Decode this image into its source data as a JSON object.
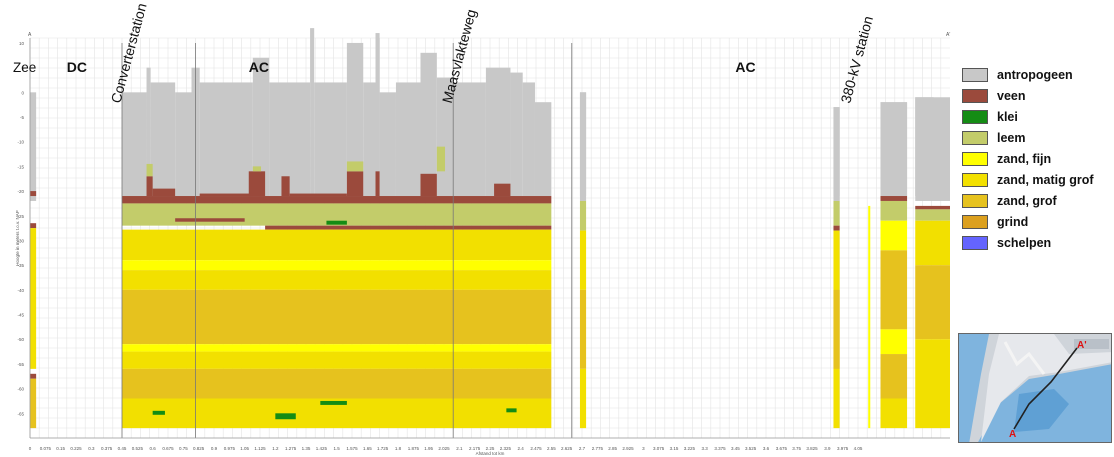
{
  "chart_data": {
    "type": "stacked-profile",
    "title": "",
    "xlabel": "Afstand tot km",
    "ylabel": "Hoogte in meters t.o.v. NAP",
    "xlim": [
      0,
      4.5
    ],
    "ylim": [
      -70,
      11
    ],
    "grid": true,
    "legend_placement": "right",
    "top_label": "A",
    "top_right_label": "A'",
    "y_ticks": [
      10,
      5,
      0,
      -5,
      -10,
      -15,
      -20,
      -25,
      -30,
      -35,
      -40,
      -45,
      -50,
      -55,
      -60,
      -65
    ],
    "x_ticks": [
      "0",
      "0.075",
      "0.15",
      "0.225",
      "0.3",
      "0.375",
      "0.45",
      "0.525",
      "0.6",
      "0.675",
      "0.75",
      "0.825",
      "0.9",
      "0.975",
      "1.05",
      "1.125",
      "1.2",
      "1.275",
      "1.35",
      "1.425",
      "1.5",
      "1.575",
      "1.65",
      "1.725",
      "1.8",
      "1.875",
      "1.95",
      "2.025",
      "2.1",
      "2.175",
      "2.25",
      "2.325",
      "2.4",
      "2.475",
      "2.55",
      "2.625",
      "2.7",
      "2.775",
      "2.85",
      "2.925",
      "3",
      "3.075",
      "3.15",
      "3.225",
      "3.3",
      "3.375",
      "3.45",
      "3.525",
      "3.6",
      "3.675",
      "3.75",
      "3.825",
      "3.9",
      "3.975",
      "4.05"
    ],
    "annotations": [
      {
        "text": "Zee",
        "x": 0.0
      },
      {
        "text": "DC",
        "x": 0.18
      },
      {
        "text": "Converterstation",
        "x": 0.48,
        "rotated": true
      },
      {
        "text": "AC",
        "x": 1.07
      },
      {
        "text": "Maasvlakteweg",
        "x": 2.1,
        "rotated": true
      },
      {
        "text": "AC",
        "x": 3.45
      },
      {
        "text": "380-kV station",
        "x": 4.05,
        "rotated": true
      }
    ],
    "vertical_lines": [
      0.45,
      0.81,
      2.07,
      2.65
    ],
    "materials": [
      {
        "name": "antropogeen",
        "color": "#c8c8c8"
      },
      {
        "name": "veen",
        "color": "#9b4a3c"
      },
      {
        "name": "klei",
        "color": "#148c14"
      },
      {
        "name": "leem",
        "color": "#c3cc6a"
      },
      {
        "name": "zand, fijn",
        "color": "#ffff00"
      },
      {
        "name": "zand, matig grof",
        "color": "#f2e000"
      },
      {
        "name": "zand, grof",
        "color": "#e6c21e"
      },
      {
        "name": "grind",
        "color": "#dca01e"
      },
      {
        "name": "schelpen",
        "color": "#6464ff"
      }
    ],
    "surface_profile": [
      {
        "x0": 0.45,
        "x1": 0.57,
        "top": 0
      },
      {
        "x0": 0.57,
        "x1": 0.59,
        "top": 5
      },
      {
        "x0": 0.59,
        "x1": 0.71,
        "top": 2
      },
      {
        "x0": 0.71,
        "x1": 0.79,
        "top": 0
      },
      {
        "x0": 0.79,
        "x1": 0.83,
        "top": 5
      },
      {
        "x0": 0.83,
        "x1": 1.09,
        "top": 2
      },
      {
        "x0": 1.09,
        "x1": 1.17,
        "top": 7
      },
      {
        "x0": 1.17,
        "x1": 1.37,
        "top": 2
      },
      {
        "x0": 1.37,
        "x1": 1.39,
        "top": 13
      },
      {
        "x0": 1.39,
        "x1": 1.55,
        "top": 2
      },
      {
        "x0": 1.55,
        "x1": 1.63,
        "top": 10
      },
      {
        "x0": 1.63,
        "x1": 1.69,
        "top": 2
      },
      {
        "x0": 1.69,
        "x1": 1.71,
        "top": 12
      },
      {
        "x0": 1.71,
        "x1": 1.79,
        "top": 0
      },
      {
        "x0": 1.79,
        "x1": 1.91,
        "top": 2
      },
      {
        "x0": 1.91,
        "x1": 1.99,
        "top": 8
      },
      {
        "x0": 1.99,
        "x1": 2.07,
        "top": 3
      },
      {
        "x0": 2.07,
        "x1": 2.23,
        "top": 2
      },
      {
        "x0": 2.23,
        "x1": 2.35,
        "top": 5
      },
      {
        "x0": 2.35,
        "x1": 2.41,
        "top": 4
      },
      {
        "x0": 2.41,
        "x1": 2.47,
        "top": 2
      },
      {
        "x0": 2.47,
        "x1": 2.55,
        "top": -2
      },
      {
        "x0": 2.69,
        "x1": 2.72,
        "top": 0
      },
      {
        "x0": 3.93,
        "x1": 3.96,
        "top": -3
      },
      {
        "x0": 4.16,
        "x1": 4.29,
        "top": -2
      },
      {
        "x0": 4.33,
        "x1": 4.42,
        "top": -1
      },
      {
        "x0": 4.42,
        "x1": 4.5,
        "top": -3
      }
    ],
    "boreholes": [
      {
        "x0": 0.0,
        "x1": 0.03,
        "top": 0
      },
      {
        "x0": 2.69,
        "x1": 2.72,
        "top": 0
      },
      {
        "x0": 3.93,
        "x1": 3.96,
        "top": -3
      },
      {
        "x0": 4.1,
        "x1": 4.11,
        "top": -23
      },
      {
        "x0": 4.16,
        "x1": 4.29,
        "top": -2
      },
      {
        "x0": 4.33,
        "x1": 4.5,
        "top": -1
      }
    ],
    "layers": [
      {
        "material": "veen",
        "x0": 0.45,
        "x1": 2.55,
        "top": -21,
        "bottom": -22.5
      },
      {
        "material": "leem",
        "x0": 0.45,
        "x1": 2.55,
        "top": -22.5,
        "bottom": -27
      },
      {
        "material": "veen",
        "x0": 0.71,
        "x1": 1.05,
        "top": -25.5,
        "bottom": -26.2
      },
      {
        "material": "veen",
        "x0": 1.15,
        "x1": 2.55,
        "top": -27,
        "bottom": -27.8
      },
      {
        "material": "klei",
        "x0": 1.45,
        "x1": 1.55,
        "top": -26,
        "bottom": -26.8
      },
      {
        "material": "zand, matig grof",
        "x0": 0.45,
        "x1": 2.55,
        "top": -27.8,
        "bottom": -34
      },
      {
        "material": "zand, fijn",
        "x0": 0.45,
        "x1": 2.55,
        "top": -34,
        "bottom": -36
      },
      {
        "material": "zand, matig grof",
        "x0": 0.45,
        "x1": 2.55,
        "top": -36,
        "bottom": -40
      },
      {
        "material": "zand, grof",
        "x0": 0.45,
        "x1": 2.55,
        "top": -40,
        "bottom": -51
      },
      {
        "material": "zand, fijn",
        "x0": 0.45,
        "x1": 2.55,
        "top": -51,
        "bottom": -52.5
      },
      {
        "material": "zand, matig grof",
        "x0": 0.45,
        "x1": 2.55,
        "top": -52.5,
        "bottom": -56
      },
      {
        "material": "zand, grof",
        "x0": 0.45,
        "x1": 2.55,
        "top": -56,
        "bottom": -62
      },
      {
        "material": "zand, matig grof",
        "x0": 0.45,
        "x1": 2.55,
        "top": -62,
        "bottom": -68
      },
      {
        "material": "klei",
        "x0": 0.6,
        "x1": 0.66,
        "top": -64.5,
        "bottom": -65.3
      },
      {
        "material": "klei",
        "x0": 1.2,
        "x1": 1.3,
        "top": -65,
        "bottom": -66.2
      },
      {
        "material": "klei",
        "x0": 1.42,
        "x1": 1.55,
        "top": -62.5,
        "bottom": -63.3
      },
      {
        "material": "klei",
        "x0": 2.33,
        "x1": 2.38,
        "top": -64,
        "bottom": -64.8
      },
      {
        "material": "veen",
        "x0": 0.57,
        "x1": 0.6,
        "top": -17,
        "bottom": -21
      },
      {
        "material": "veen",
        "x0": 0.6,
        "x1": 0.71,
        "top": -19.5,
        "bottom": -21
      },
      {
        "material": "veen",
        "x0": 0.83,
        "x1": 1.09,
        "top": -20.5,
        "bottom": -21
      },
      {
        "material": "veen",
        "x0": 1.07,
        "x1": 1.15,
        "top": -16,
        "bottom": -21
      },
      {
        "material": "veen",
        "x0": 1.23,
        "x1": 1.27,
        "top": -17,
        "bottom": -21
      },
      {
        "material": "veen",
        "x0": 1.27,
        "x1": 1.55,
        "top": -20.5,
        "bottom": -21
      },
      {
        "material": "veen",
        "x0": 1.55,
        "x1": 1.63,
        "top": -16,
        "bottom": -21
      },
      {
        "material": "veen",
        "x0": 1.69,
        "x1": 1.71,
        "top": -16,
        "bottom": -21
      },
      {
        "material": "veen",
        "x0": 1.91,
        "x1": 1.99,
        "top": -16.5,
        "bottom": -21
      },
      {
        "material": "veen",
        "x0": 2.27,
        "x1": 2.35,
        "top": -18.5,
        "bottom": -21
      },
      {
        "material": "leem",
        "x0": 0.57,
        "x1": 0.6,
        "top": -14.5,
        "bottom": -17
      },
      {
        "material": "leem",
        "x0": 1.55,
        "x1": 1.63,
        "top": -14,
        "bottom": -16
      },
      {
        "material": "leem",
        "x0": 1.99,
        "x1": 2.03,
        "top": -11,
        "bottom": -16
      },
      {
        "material": "leem",
        "x0": 1.09,
        "x1": 1.13,
        "top": -15,
        "bottom": -16
      },
      {
        "material": "veen",
        "x0": 0.0,
        "x1": 0.03,
        "top": -20,
        "bottom": -21
      },
      {
        "material": "veen",
        "x0": 0.0,
        "x1": 0.03,
        "top": -26.5,
        "bottom": -27.5
      },
      {
        "material": "zand, matig grof",
        "x0": 0.0,
        "x1": 0.03,
        "top": -27.5,
        "bottom": -56
      },
      {
        "material": "veen",
        "x0": 0.0,
        "x1": 0.03,
        "top": -57,
        "bottom": -58
      },
      {
        "material": "zand, grof",
        "x0": 0.0,
        "x1": 0.03,
        "top": -58,
        "bottom": -68
      },
      {
        "material": "leem",
        "x0": 2.69,
        "x1": 2.72,
        "top": -22,
        "bottom": -28
      },
      {
        "material": "zand, matig grof",
        "x0": 2.69,
        "x1": 2.72,
        "top": -28,
        "bottom": -40
      },
      {
        "material": "zand, grof",
        "x0": 2.69,
        "x1": 2.72,
        "top": -40,
        "bottom": -56
      },
      {
        "material": "zand, matig grof",
        "x0": 2.69,
        "x1": 2.72,
        "top": -56,
        "bottom": -68
      },
      {
        "material": "leem",
        "x0": 3.93,
        "x1": 3.96,
        "top": -22,
        "bottom": -27
      },
      {
        "material": "veen",
        "x0": 3.93,
        "x1": 3.96,
        "top": -27,
        "bottom": -28
      },
      {
        "material": "zand, matig grof",
        "x0": 3.93,
        "x1": 3.96,
        "top": -28,
        "bottom": -68
      },
      {
        "material": "zand, grof",
        "x0": 3.93,
        "x1": 3.96,
        "top": -40,
        "bottom": -56
      },
      {
        "material": "zand, fijn",
        "x0": 4.1,
        "x1": 4.11,
        "top": -23,
        "bottom": -68
      },
      {
        "material": "veen",
        "x0": 4.16,
        "x1": 4.29,
        "top": -21,
        "bottom": -22
      },
      {
        "material": "leem",
        "x0": 4.16,
        "x1": 4.29,
        "top": -22,
        "bottom": -26
      },
      {
        "material": "zand, fijn",
        "x0": 4.16,
        "x1": 4.29,
        "top": -26,
        "bottom": -32
      },
      {
        "material": "zand, grof",
        "x0": 4.16,
        "x1": 4.29,
        "top": -32,
        "bottom": -48
      },
      {
        "material": "zand, fijn",
        "x0": 4.16,
        "x1": 4.29,
        "top": -48,
        "bottom": -53
      },
      {
        "material": "zand, grof",
        "x0": 4.16,
        "x1": 4.29,
        "top": -53,
        "bottom": -62
      },
      {
        "material": "zand, matig grof",
        "x0": 4.16,
        "x1": 4.29,
        "top": -62,
        "bottom": -68
      },
      {
        "material": "veen",
        "x0": 4.33,
        "x1": 4.5,
        "top": -23,
        "bottom": -23.7
      },
      {
        "material": "leem",
        "x0": 4.33,
        "x1": 4.5,
        "top": -23.7,
        "bottom": -26
      },
      {
        "material": "zand, matig grof",
        "x0": 4.33,
        "x1": 4.5,
        "top": -26,
        "bottom": -35
      },
      {
        "material": "zand, grof",
        "x0": 4.33,
        "x1": 4.5,
        "top": -35,
        "bottom": -50
      },
      {
        "material": "zand, matig grof",
        "x0": 4.33,
        "x1": 4.5,
        "top": -50,
        "bottom": -68
      }
    ]
  }
}
